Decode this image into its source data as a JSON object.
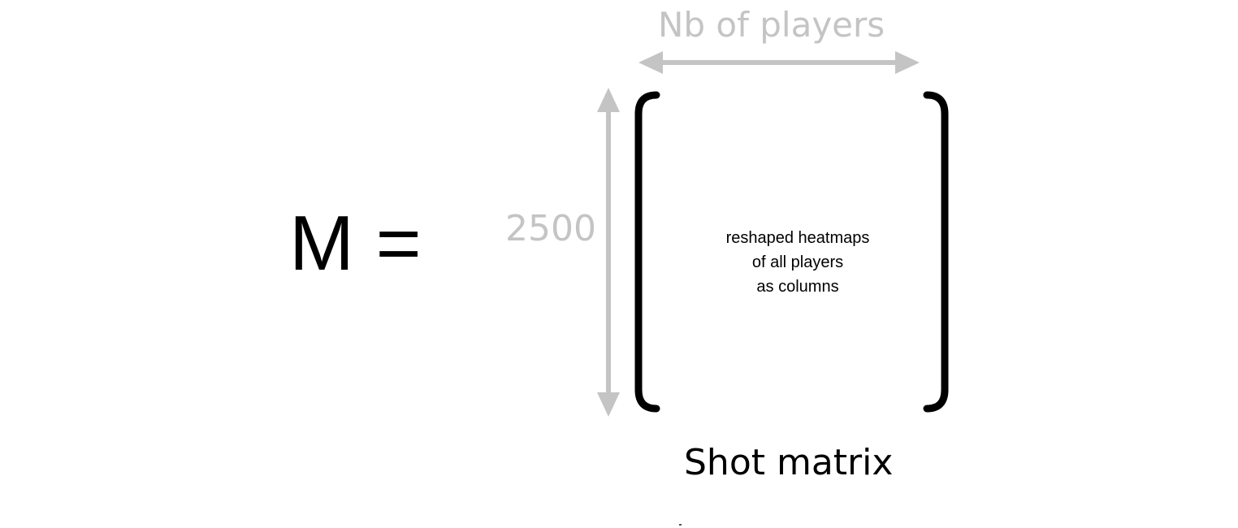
{
  "diagram": {
    "lhs": "M =",
    "rows_label": "2500",
    "cols_label": "Nb of players",
    "content_lines": [
      "reshaped heatmaps",
      "of all players",
      "as columns"
    ],
    "caption": "Shot matrix"
  },
  "colors": {
    "arrow": "#c4c4c4",
    "bracket": "#000000",
    "text": "#000000"
  }
}
